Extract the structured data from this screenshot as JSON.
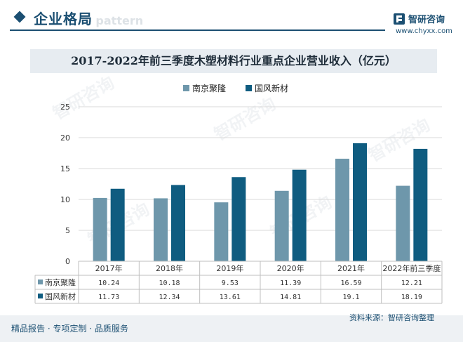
{
  "header": {
    "section_title": "企业格局",
    "section_ghost": "e pattern",
    "logo_name": "智研咨询",
    "logo_url": "www.chyxx.com"
  },
  "watermark": "智研咨询",
  "footer": {
    "tagline": "精品报告 · 专项定制 · 品质服务",
    "source": "资料来源：智研咨询整理"
  },
  "colors": {
    "series1": "#6e97ab",
    "series2": "#0f5c80",
    "grid": "#d9d9d9",
    "axis_text": "#333333"
  },
  "chart_data": {
    "type": "bar",
    "title": "2017-2022年前三季度木塑材料行业重点企业营业收入（亿元）",
    "categories": [
      "2017年",
      "2018年",
      "2019年",
      "2020年",
      "2021年",
      "2022年前三季度"
    ],
    "series": [
      {
        "name": "南京聚隆",
        "values": [
          10.24,
          10.18,
          9.53,
          11.39,
          16.59,
          12.21
        ]
      },
      {
        "name": "国风新材",
        "values": [
          11.73,
          12.34,
          13.61,
          14.81,
          19.1,
          18.19
        ]
      }
    ],
    "table_values": [
      [
        "10.24",
        "10.18",
        "9.53",
        "11.39",
        "16.59",
        "12.21"
      ],
      [
        "11.73",
        "12.34",
        "13.61",
        "14.81",
        "19.1",
        "18.19"
      ]
    ],
    "ylim": [
      0,
      25
    ],
    "yticks": [
      "0",
      "5",
      "10",
      "15",
      "20",
      "25"
    ],
    "xlabel": "",
    "ylabel": "",
    "grid": true,
    "legend_position": "top"
  }
}
